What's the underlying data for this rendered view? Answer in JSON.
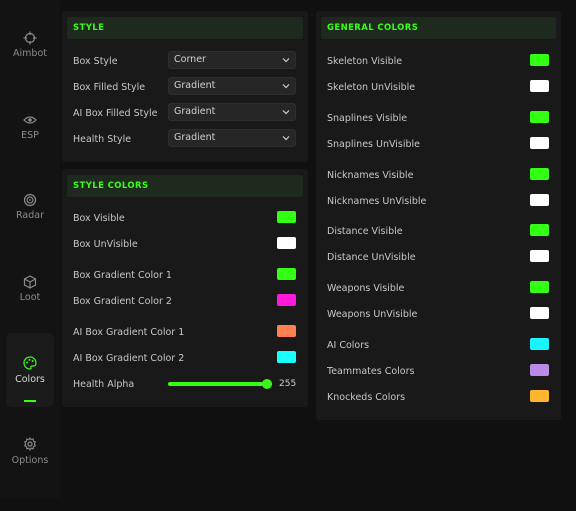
{
  "sidebar": {
    "items": [
      {
        "label": "Aimbot",
        "icon": "crosshair-icon",
        "active": false
      },
      {
        "label": "ESP",
        "icon": "eye-icon",
        "active": false
      },
      {
        "label": "Radar",
        "icon": "radar-icon",
        "active": false
      },
      {
        "label": "Loot",
        "icon": "box-icon",
        "active": false
      },
      {
        "label": "Colors",
        "icon": "palette-icon",
        "active": true
      },
      {
        "label": "Options",
        "icon": "gear-icon",
        "active": false
      }
    ]
  },
  "style": {
    "title": "STYLE",
    "rows": [
      {
        "label": "Box Style",
        "value": "Corner"
      },
      {
        "label": "Box Filled Style",
        "value": "Gradient"
      },
      {
        "label": "AI Box Filled Style",
        "value": "Gradient"
      },
      {
        "label": "Health Style",
        "value": "Gradient"
      }
    ]
  },
  "style_colors": {
    "title": "STYLE COLORS",
    "rows": [
      {
        "label": "Box Visible",
        "color": "#33ff14"
      },
      {
        "label": "Box UnVisible",
        "color": "#ffffff"
      },
      {
        "label": "Box Gradient Color 1",
        "color": "#33ff14"
      },
      {
        "label": "Box Gradient Color 2",
        "color": "#ff1adb"
      },
      {
        "label": "AI Box Gradient Color 1",
        "color": "#ff8051"
      },
      {
        "label": "AI Box Gradient Color 2",
        "color": "#1affff"
      }
    ],
    "health_alpha": {
      "label": "Health Alpha",
      "value": "255",
      "fraction": 1.0
    }
  },
  "general_colors": {
    "title": "GENERAL COLORS",
    "rows": [
      {
        "label": "Skeleton Visible",
        "color": "#33ff14"
      },
      {
        "label": "Skeleton UnVisible",
        "color": "#ffffff"
      },
      {
        "label": "Snaplines Visible",
        "color": "#33ff14"
      },
      {
        "label": "Snaplines UnVisible",
        "color": "#ffffff"
      },
      {
        "label": "Nicknames Visible",
        "color": "#33ff14"
      },
      {
        "label": "Nicknames UnVisible",
        "color": "#ffffff"
      },
      {
        "label": "Distance Visible",
        "color": "#33ff14"
      },
      {
        "label": "Distance UnVisible",
        "color": "#ffffff"
      },
      {
        "label": "Weapons Visible",
        "color": "#33ff14"
      },
      {
        "label": "Weapons UnVisible",
        "color": "#ffffff"
      },
      {
        "label": "AI Colors",
        "color": "#1af4ff"
      },
      {
        "label": "Teammates Colors",
        "color": "#b98ae6"
      },
      {
        "label": "Knockeds Colors",
        "color": "#ffb52e"
      }
    ]
  }
}
